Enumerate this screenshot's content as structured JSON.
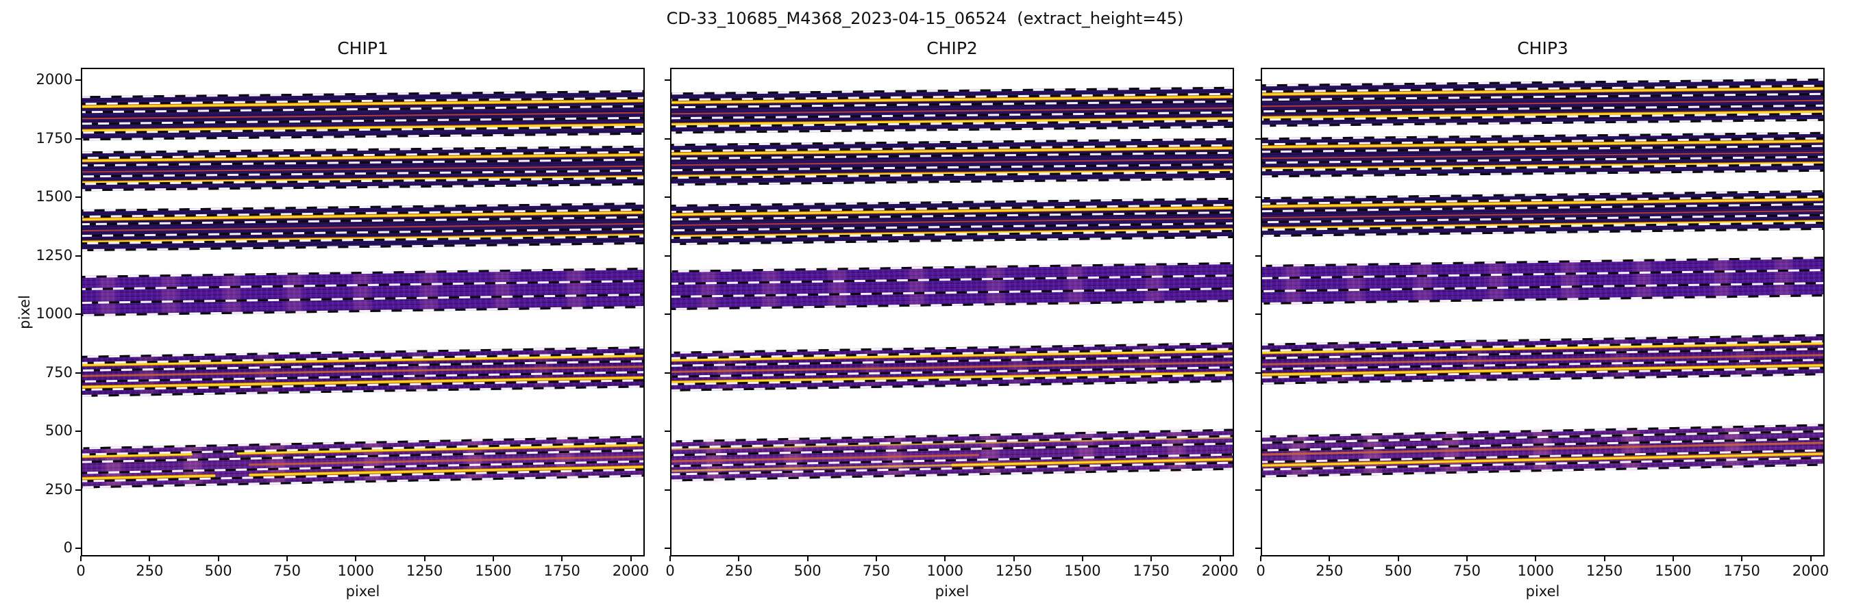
{
  "figure": {
    "title": "CD-33_10685_M4368_2023-04-15_06524  (extract_height=45)",
    "background": "#ffffff"
  },
  "axes": {
    "xlabel": "pixel",
    "ylabel": "pixel"
  },
  "chart_data": {
    "type": "heatmap",
    "title": "CD-33_10685_M4368_2023-04-15_06524  (extract_height=45)",
    "subplot_titles": [
      "CHIP1",
      "CHIP2",
      "CHIP3"
    ],
    "xlabel": "pixel",
    "ylabel": "pixel",
    "x_range": [
      0,
      2051
    ],
    "y_range": [
      -35,
      2053
    ],
    "x_ticks": [
      0,
      250,
      500,
      750,
      1000,
      1250,
      1500,
      1750,
      2000
    ],
    "y_ticks": [
      0,
      250,
      500,
      750,
      1000,
      1250,
      1500,
      1750,
      2000
    ],
    "grid": false,
    "legend": null,
    "colors": {
      "band_dark": "#271060",
      "band_violet": "#4f1397",
      "band_violet2": "#481085",
      "band_magenta": "#5e1c90",
      "trace_bright": "#ffd21c",
      "trace_faint": "#b5402f",
      "trace_faint2": "#cf6230",
      "trace_amber": "#dfa23f",
      "dash_white": "#f6f4fb",
      "dash_black": "#0b0b0b",
      "spine": "#000000"
    },
    "band_styles": {
      "dark": {
        "body": "#271060",
        "smudge_alpha": 0.0
      },
      "violet": {
        "body": "#4f1397",
        "smudge_alpha": 0.2
      },
      "violet2": {
        "body": "#481085",
        "smudge_alpha": 0.16
      },
      "magenta": {
        "body": "#5e1c90",
        "smudge_alpha": 0.26
      }
    },
    "dash_sets": {
      "d6": [
        0,
        0.17,
        0.36,
        0.63,
        0.82,
        1
      ],
      "d4": [
        0,
        0.33,
        0.66,
        1
      ]
    },
    "chips": [
      {
        "title": "CHIP1",
        "groups": [
          {
            "center": 1843,
            "height": 190,
            "slope": 25,
            "style": "dark",
            "dashes": "d6",
            "traces": [
              [
                0.24,
                "bright",
                0,
                1
              ],
              [
                0.52,
                "faint",
                0,
                1
              ],
              [
                0.78,
                "bright",
                0,
                1
              ]
            ],
            "smudges": []
          },
          {
            "center": 1617,
            "height": 170,
            "slope": 25,
            "style": "dark",
            "dashes": "d6",
            "traces": [
              [
                0.24,
                "bright",
                0,
                1
              ],
              [
                0.52,
                "faint",
                0,
                1
              ],
              [
                0.78,
                "bright",
                0,
                1
              ]
            ],
            "smudges": []
          },
          {
            "center": 1364,
            "height": 178,
            "slope": 30,
            "style": "dark",
            "dashes": "d6",
            "traces": [
              [
                0.24,
                "bright",
                0,
                1
              ],
              [
                0.52,
                "faint",
                0,
                1
              ],
              [
                0.78,
                "bright",
                0,
                1
              ]
            ],
            "smudges": []
          },
          {
            "center": 1084,
            "height": 173,
            "slope": 35,
            "style": "violet",
            "dashes": "d4",
            "traces": [],
            "smudges": [
              0.05,
              0.16,
              0.27,
              0.38,
              0.5,
              0.62,
              0.75,
              0.88
            ]
          },
          {
            "center": 740,
            "height": 175,
            "slope": 40,
            "style": "violet2",
            "dashes": "d6",
            "traces": [
              [
                0.22,
                "bright",
                0,
                1
              ],
              [
                0.5,
                "faint2",
                0,
                1
              ],
              [
                0.76,
                "bright",
                0,
                1
              ]
            ],
            "smudges": [
              0.12,
              0.33,
              0.6,
              0.82
            ]
          },
          {
            "center": 348,
            "height": 176,
            "slope": 50,
            "style": "magenta",
            "dashes": "d6",
            "traces": [
              [
                0.22,
                "bright",
                0,
                0.2
              ],
              [
                0.22,
                "bright",
                0.28,
                1
              ],
              [
                0.5,
                "faint2",
                0.3,
                1
              ],
              [
                0.75,
                "bright",
                0,
                0.24
              ],
              [
                0.75,
                "bright",
                0.3,
                1
              ]
            ],
            "smudges": [
              0.06,
              0.2,
              0.35,
              0.52,
              0.7,
              0.86
            ]
          }
        ]
      },
      {
        "title": "CHIP2",
        "groups": [
          {
            "center": 1866,
            "height": 175,
            "slope": 25,
            "style": "dark",
            "dashes": "d6",
            "traces": [
              [
                0.24,
                "bright",
                0,
                1
              ],
              [
                0.52,
                "faint",
                0,
                1
              ],
              [
                0.78,
                "bright",
                0,
                1
              ]
            ],
            "smudges": []
          },
          {
            "center": 1645,
            "height": 178,
            "slope": 25,
            "style": "dark",
            "dashes": "d6",
            "traces": [
              [
                0.24,
                "bright",
                0,
                1
              ],
              [
                0.52,
                "faint",
                0,
                1
              ],
              [
                0.78,
                "bright",
                0,
                1
              ]
            ],
            "smudges": []
          },
          {
            "center": 1388,
            "height": 173,
            "slope": 30,
            "style": "dark",
            "dashes": "d6",
            "traces": [
              [
                0.24,
                "bright",
                0,
                1
              ],
              [
                0.52,
                "faint",
                0,
                1
              ],
              [
                0.78,
                "bright",
                0,
                1
              ]
            ],
            "smudges": []
          },
          {
            "center": 1107,
            "height": 170,
            "slope": 35,
            "style": "violet",
            "dashes": "d4",
            "traces": [],
            "smudges": [
              0.07,
              0.18,
              0.3,
              0.44,
              0.58,
              0.72,
              0.86
            ]
          },
          {
            "center": 761,
            "height": 170,
            "slope": 40,
            "style": "violet2",
            "dashes": "d6",
            "traces": [
              [
                0.22,
                "bright",
                0,
                1
              ],
              [
                0.5,
                "faint2",
                0,
                1
              ],
              [
                0.76,
                "bright",
                0,
                1
              ]
            ],
            "smudges": [
              0.1,
              0.36,
              0.62,
              0.85
            ]
          },
          {
            "center": 378,
            "height": 176,
            "slope": 50,
            "style": "magenta",
            "dashes": "d6",
            "traces": [
              [
                0.2,
                "amber",
                0,
                1
              ],
              [
                0.5,
                "faint2",
                0,
                0.55
              ],
              [
                0.74,
                "amber",
                0,
                0.5
              ],
              [
                0.74,
                "bright",
                0.5,
                1
              ]
            ],
            "smudges": [
              0.08,
              0.22,
              0.4,
              0.57,
              0.74,
              0.9
            ]
          }
        ]
      },
      {
        "title": "CHIP3",
        "groups": [
          {
            "center": 1898,
            "height": 182,
            "slope": 25,
            "style": "dark",
            "dashes": "d6",
            "traces": [
              [
                0.24,
                "bright",
                0,
                1
              ],
              [
                0.52,
                "faint",
                0,
                1
              ],
              [
                0.78,
                "bright",
                0,
                1
              ]
            ],
            "smudges": []
          },
          {
            "center": 1675,
            "height": 170,
            "slope": 25,
            "style": "dark",
            "dashes": "d6",
            "traces": [
              [
                0.24,
                "bright",
                0,
                1
              ],
              [
                0.52,
                "faint",
                0,
                1
              ],
              [
                0.78,
                "bright",
                0,
                1
              ]
            ],
            "smudges": []
          },
          {
            "center": 1421,
            "height": 170,
            "slope": 30,
            "style": "dark",
            "dashes": "d6",
            "traces": [
              [
                0.24,
                "bright",
                0,
                1
              ],
              [
                0.52,
                "faint",
                0,
                1
              ],
              [
                0.78,
                "bright",
                0,
                1
              ]
            ],
            "smudges": []
          },
          {
            "center": 1130,
            "height": 171,
            "slope": 35,
            "style": "violet",
            "dashes": "d4",
            "traces": [],
            "smudges": [
              0.06,
              0.17,
              0.29,
              0.42,
              0.55,
              0.68,
              0.82,
              0.93
            ]
          },
          {
            "center": 794,
            "height": 176,
            "slope": 40,
            "style": "violet2",
            "dashes": "d6",
            "traces": [
              [
                0.22,
                "bright",
                0,
                1
              ],
              [
                0.5,
                "faint2",
                0,
                1
              ],
              [
                0.76,
                "bright",
                0,
                1
              ]
            ],
            "smudges": [
              0.14,
              0.38,
              0.64,
              0.86
            ]
          },
          {
            "center": 397,
            "height": 177,
            "slope": 50,
            "style": "magenta",
            "dashes": "d6",
            "traces": [
              [
                0.18,
                "amber",
                0,
                1
              ],
              [
                0.45,
                "faint2",
                0,
                1
              ],
              [
                0.72,
                "bright",
                0,
                1
              ]
            ],
            "smudges": [
              0.07,
              0.2,
              0.34,
              0.5,
              0.66,
              0.84
            ]
          }
        ]
      }
    ]
  }
}
